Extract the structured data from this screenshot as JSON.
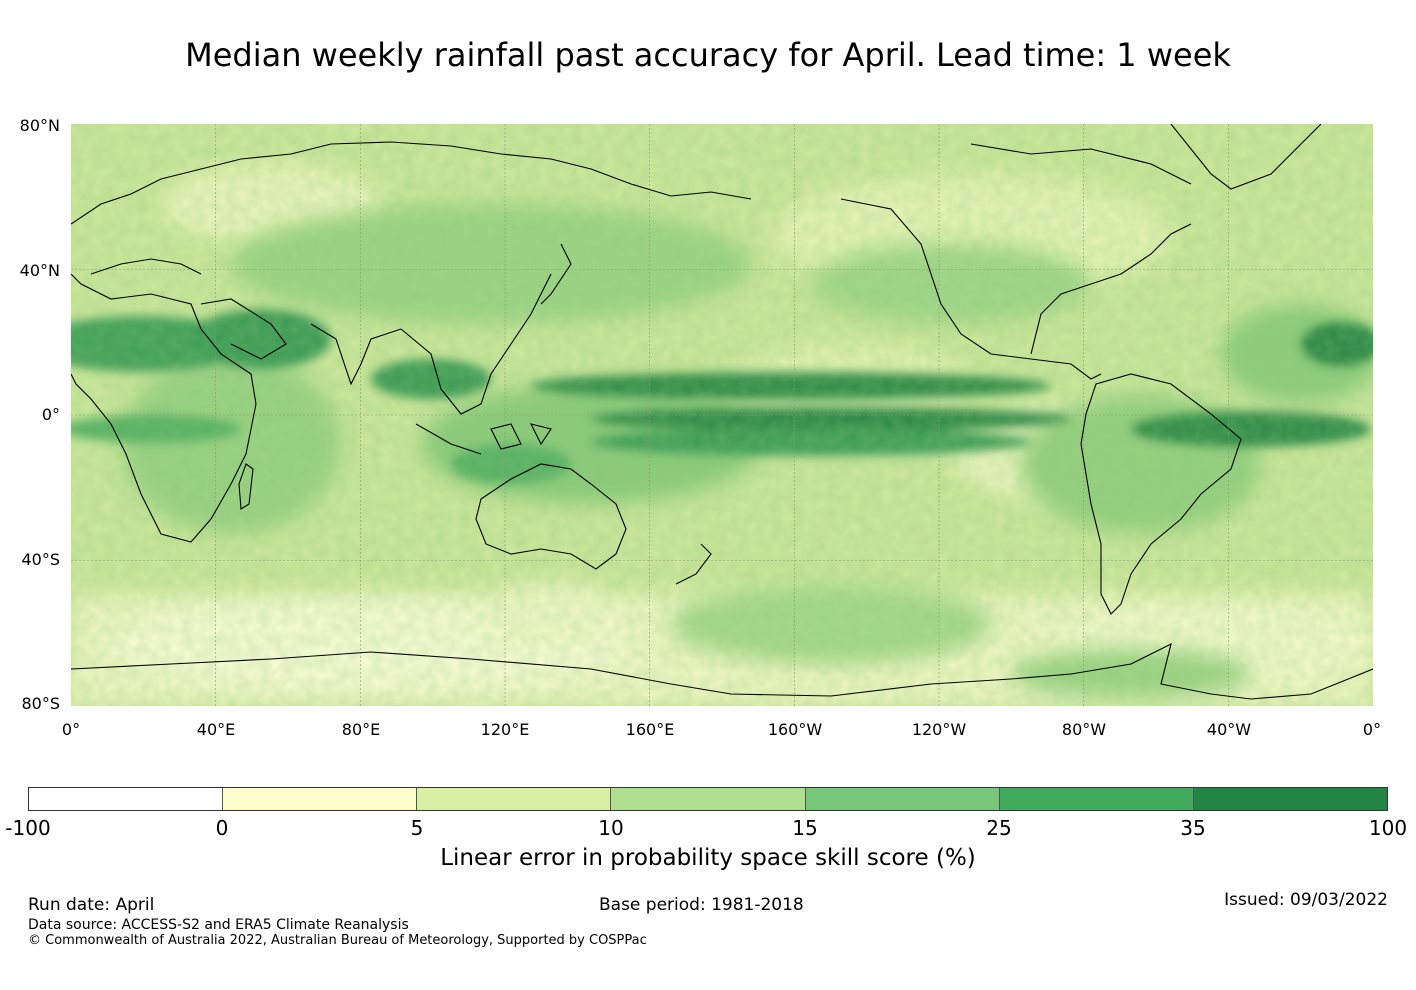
{
  "title": "Median weekly rainfall past accuracy for April. Lead time: 1 week",
  "map": {
    "lat_labels": [
      "80°N",
      "40°N",
      "0°",
      "40°S",
      "80°S"
    ],
    "lon_labels": [
      "0°",
      "40°E",
      "80°E",
      "120°E",
      "160°E",
      "160°W",
      "120°W",
      "80°W",
      "40°W",
      "0°"
    ],
    "gridline_color": "#8c9a74"
  },
  "colorbar": {
    "ticks": [
      "-100",
      "0",
      "5",
      "10",
      "15",
      "25",
      "35",
      "100"
    ],
    "colors": [
      "#ffffff",
      "#fefecc",
      "#d9efa3",
      "#addf8e",
      "#78c679",
      "#41ab5d",
      "#238443"
    ],
    "label": "Linear error in probability space skill score (%)"
  },
  "footer": {
    "run_date": "Run date: April",
    "base_period": "Base period: 1981-2018",
    "issued": "Issued: 09/03/2022",
    "data_source": "Data source: ACCESS-S2 and ERA5 Climate Reanalysis",
    "copyright": "© Commonwealth of Australia 2022, Australian Bureau of Meteorology, Supported by COSPPac"
  }
}
